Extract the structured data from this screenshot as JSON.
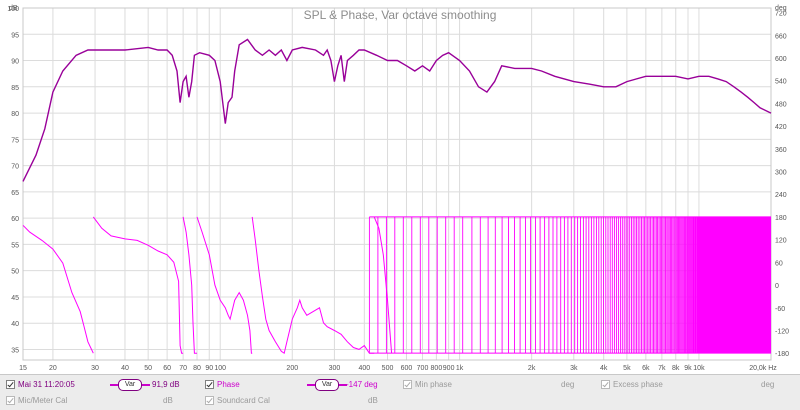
{
  "chart_data": {
    "type": "line",
    "title": "SPL & Phase, Var octave smoothing",
    "left_axis_unit": "dB",
    "right_axis_unit": "deg",
    "x_unit": "Hz",
    "xscale": "log",
    "xlim": [
      15,
      20000
    ],
    "ylim_left": [
      33,
      100
    ],
    "ylim_right": [
      -198,
      732
    ],
    "left_ticks": [
      "35",
      "40",
      "45",
      "50",
      "55",
      "60",
      "65",
      "70",
      "75",
      "80",
      "85",
      "90",
      "95",
      "100"
    ],
    "right_ticks": [
      "-180",
      "-120",
      "-60",
      "0",
      "60",
      "120",
      "180",
      "240",
      "300",
      "360",
      "420",
      "480",
      "540",
      "600",
      "660",
      "720"
    ],
    "x_ticks": [
      {
        "v": 15,
        "label": "15"
      },
      {
        "v": 20,
        "label": "20"
      },
      {
        "v": 30,
        "label": "30"
      },
      {
        "v": 40,
        "label": "40"
      },
      {
        "v": 50,
        "label": "50"
      },
      {
        "v": 60,
        "label": "60"
      },
      {
        "v": 70,
        "label": "70"
      },
      {
        "v": 80,
        "label": "80"
      },
      {
        "v": 90,
        "label": "90"
      },
      {
        "v": 100,
        "label": "100"
      },
      {
        "v": 200,
        "label": "200"
      },
      {
        "v": 300,
        "label": "300"
      },
      {
        "v": 400,
        "label": "400"
      },
      {
        "v": 500,
        "label": "500"
      },
      {
        "v": 600,
        "label": "600"
      },
      {
        "v": 700,
        "label": "700"
      },
      {
        "v": 800,
        "label": "800"
      },
      {
        "v": 900,
        "label": "900"
      },
      {
        "v": 1000,
        "label": "1k"
      },
      {
        "v": 2000,
        "label": "2k"
      },
      {
        "v": 3000,
        "label": "3k"
      },
      {
        "v": 4000,
        "label": "4k"
      },
      {
        "v": 5000,
        "label": "5k"
      },
      {
        "v": 6000,
        "label": "6k"
      },
      {
        "v": 7000,
        "label": "7k"
      },
      {
        "v": 8000,
        "label": "8k"
      },
      {
        "v": 9000,
        "label": "9k"
      },
      {
        "v": 10000,
        "label": "10k"
      },
      {
        "v": 20000,
        "label": "20,0k Hz"
      }
    ],
    "grid": true,
    "series": [
      {
        "name": "SPL",
        "axis": "left",
        "color": "#990099",
        "points": [
          [
            15,
            67
          ],
          [
            17,
            72
          ],
          [
            18.5,
            77
          ],
          [
            20,
            84
          ],
          [
            22,
            88
          ],
          [
            25,
            91
          ],
          [
            28,
            92
          ],
          [
            30,
            92
          ],
          [
            40,
            92
          ],
          [
            50,
            92.5
          ],
          [
            55,
            92
          ],
          [
            60,
            92
          ],
          [
            63,
            91
          ],
          [
            66,
            88
          ],
          [
            68,
            82
          ],
          [
            70,
            86
          ],
          [
            72,
            87
          ],
          [
            74,
            83
          ],
          [
            76,
            86
          ],
          [
            78,
            91
          ],
          [
            82,
            91.5
          ],
          [
            90,
            91
          ],
          [
            95,
            90
          ],
          [
            100,
            86
          ],
          [
            105,
            78
          ],
          [
            108,
            82
          ],
          [
            112,
            83
          ],
          [
            115,
            88
          ],
          [
            120,
            93
          ],
          [
            130,
            94
          ],
          [
            140,
            92
          ],
          [
            150,
            91
          ],
          [
            160,
            92
          ],
          [
            170,
            91
          ],
          [
            180,
            92
          ],
          [
            190,
            90
          ],
          [
            200,
            92
          ],
          [
            220,
            92.5
          ],
          [
            250,
            92
          ],
          [
            270,
            91
          ],
          [
            280,
            92
          ],
          [
            290,
            90
          ],
          [
            300,
            86
          ],
          [
            310,
            89
          ],
          [
            320,
            91
          ],
          [
            330,
            86
          ],
          [
            340,
            90
          ],
          [
            360,
            91
          ],
          [
            380,
            92
          ],
          [
            400,
            92
          ],
          [
            450,
            91
          ],
          [
            500,
            90
          ],
          [
            550,
            90
          ],
          [
            600,
            89
          ],
          [
            650,
            88
          ],
          [
            700,
            89
          ],
          [
            750,
            88
          ],
          [
            800,
            90
          ],
          [
            850,
            91
          ],
          [
            900,
            91.5
          ],
          [
            1000,
            90
          ],
          [
            1100,
            88
          ],
          [
            1200,
            85
          ],
          [
            1300,
            84
          ],
          [
            1400,
            86
          ],
          [
            1500,
            89
          ],
          [
            1700,
            88.5
          ],
          [
            2000,
            88.5
          ],
          [
            2200,
            88
          ],
          [
            2500,
            87
          ],
          [
            3000,
            86
          ],
          [
            3500,
            85.5
          ],
          [
            4000,
            85
          ],
          [
            4500,
            85
          ],
          [
            5000,
            86
          ],
          [
            6000,
            87
          ],
          [
            7000,
            87
          ],
          [
            8000,
            87
          ],
          [
            9000,
            86.5
          ],
          [
            10000,
            87
          ],
          [
            11000,
            87
          ],
          [
            12000,
            86.5
          ],
          [
            13000,
            86
          ],
          [
            14000,
            85
          ],
          [
            15000,
            84
          ],
          [
            16000,
            83
          ],
          [
            17000,
            82
          ],
          [
            18000,
            81
          ],
          [
            20000,
            80
          ]
        ]
      },
      {
        "name": "Phase",
        "axis": "right",
        "color": "#ff00ff",
        "points": [
          [
            15,
            158
          ],
          [
            16,
            140
          ],
          [
            18,
            118
          ],
          [
            20,
            95
          ],
          [
            22,
            58
          ],
          [
            24,
            -20
          ],
          [
            26,
            -70
          ],
          [
            27,
            -110
          ],
          [
            28,
            -150
          ],
          [
            29,
            -170
          ],
          [
            29.5,
            180
          ],
          [
            32,
            150
          ],
          [
            35,
            130
          ],
          [
            40,
            122
          ],
          [
            45,
            118
          ],
          [
            50,
            105
          ],
          [
            55,
            90
          ],
          [
            60,
            80
          ],
          [
            64,
            60
          ],
          [
            67,
            10
          ],
          [
            68,
            -160
          ],
          [
            69,
            -180
          ],
          [
            70,
            180
          ],
          [
            72,
            140
          ],
          [
            74,
            80
          ],
          [
            76,
            0
          ],
          [
            77,
            -100
          ],
          [
            78,
            -180
          ],
          [
            80,
            180
          ],
          [
            84,
            140
          ],
          [
            90,
            80
          ],
          [
            95,
            0
          ],
          [
            100,
            -40
          ],
          [
            105,
            -60
          ],
          [
            108,
            -80
          ],
          [
            110,
            -90
          ],
          [
            115,
            -40
          ],
          [
            120,
            -20
          ],
          [
            125,
            -40
          ],
          [
            130,
            -80
          ],
          [
            133,
            -120
          ],
          [
            135,
            -180
          ],
          [
            136,
            180
          ],
          [
            140,
            120
          ],
          [
            145,
            40
          ],
          [
            150,
            -30
          ],
          [
            155,
            -90
          ],
          [
            160,
            -120
          ],
          [
            170,
            -150
          ],
          [
            180,
            -175
          ],
          [
            185,
            -180
          ],
          [
            190,
            -150
          ],
          [
            200,
            -90
          ],
          [
            210,
            -60
          ],
          [
            215,
            -40
          ],
          [
            220,
            -60
          ],
          [
            230,
            -80
          ],
          [
            260,
            -60
          ],
          [
            270,
            -100
          ],
          [
            280,
            -110
          ],
          [
            300,
            -120
          ],
          [
            320,
            -130
          ],
          [
            340,
            -150
          ],
          [
            360,
            -165
          ],
          [
            380,
            -170
          ],
          [
            400,
            -160
          ],
          [
            420,
            -180
          ],
          [
            440,
            180
          ],
          [
            460,
            150
          ],
          [
            480,
            80
          ],
          [
            500,
            -40
          ],
          [
            520,
            -180
          ]
        ]
      }
    ],
    "phase_dense_start_hz": 420,
    "phase_dense_end_hz": 20000
  },
  "legend": {
    "row1": [
      {
        "label": "Mai 31 11:20:05",
        "checked": true,
        "value": "91,9 dB",
        "pill": "Var",
        "disabled": false
      },
      {
        "label": "Phase",
        "checked": true,
        "value": "-147 deg",
        "pill": "Var",
        "disabled": false
      },
      {
        "label": "Min phase",
        "checked": true,
        "value": "deg",
        "disabled": true
      },
      {
        "label": "Excess phase",
        "checked": true,
        "value": "deg",
        "disabled": true
      }
    ],
    "row2": [
      {
        "label": "Mic/Meter Cal",
        "checked": true,
        "value": "dB",
        "disabled": true
      },
      {
        "label": "Soundcard Cal",
        "checked": true,
        "value": "dB",
        "disabled": true
      }
    ]
  }
}
